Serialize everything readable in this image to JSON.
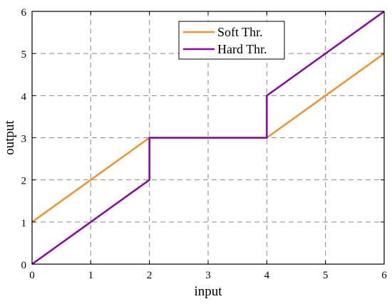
{
  "chart_data": {
    "type": "line",
    "title": "",
    "xlabel": "input",
    "ylabel": "output",
    "xlim": [
      0,
      6
    ],
    "ylim": [
      0,
      6
    ],
    "xticks": [
      0,
      1,
      2,
      3,
      4,
      5,
      6
    ],
    "yticks": [
      0,
      1,
      2,
      3,
      4,
      5,
      6
    ],
    "grid": true,
    "legend_position": "top-center",
    "series": [
      {
        "name": "Soft Thr.",
        "color": "#F0952E",
        "points": [
          [
            0,
            1
          ],
          [
            2,
            3
          ],
          [
            4,
            3
          ],
          [
            6,
            5
          ]
        ]
      },
      {
        "name": "Hard Thr.",
        "color": "#8B0AA5",
        "points": [
          [
            0,
            0
          ],
          [
            2,
            2
          ],
          [
            2,
            3
          ],
          [
            4,
            3
          ],
          [
            4,
            4
          ],
          [
            6,
            6
          ]
        ]
      }
    ]
  }
}
